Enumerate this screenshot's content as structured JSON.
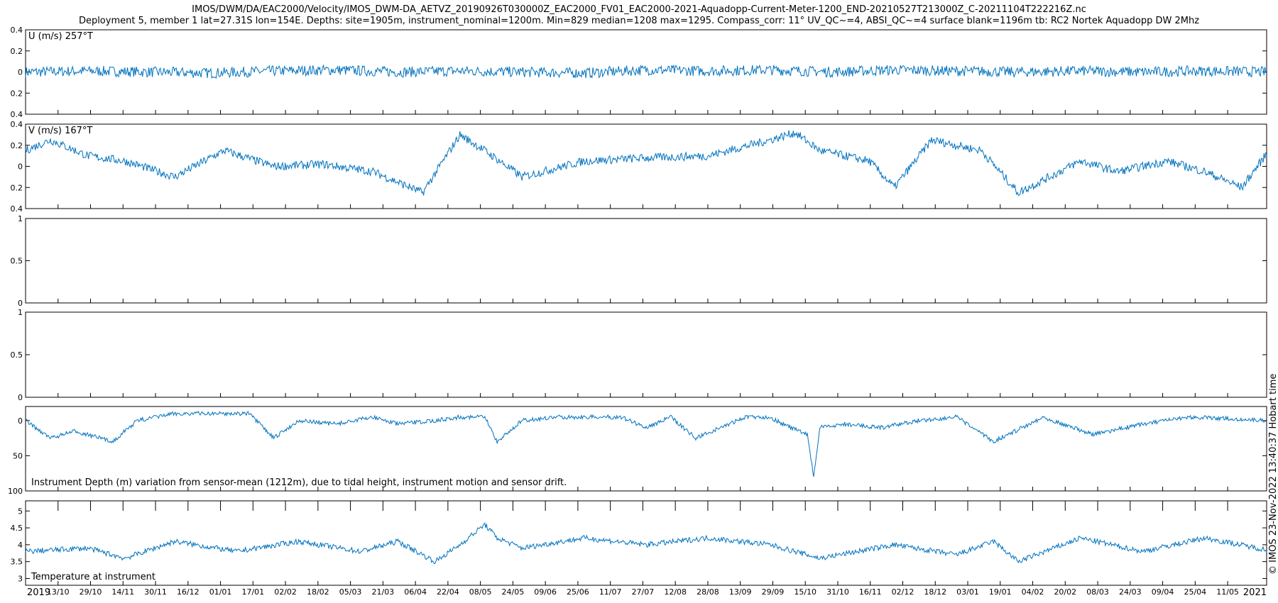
{
  "header": {
    "title_line1": "IMOS/DWM/DA/EAC2000/Velocity/IMOS_DWM-DA_AETVZ_20190926T030000Z_EAC2000_FV01_EAC2000-2021-Aquadopp-Current-Meter-1200_END-20210527T213000Z_C-20211104T222216Z.nc",
    "title_line2": "Deployment 5, member 1 lat=27.31S lon=154E. Depths: site=1905m, instrument_nominal=1200m. Min=829 median=1208 max=1295. Compass_corr: 11° UV_QC~=4, ABSI_QC~=4 surface blank=1196m tb: RC2 Nortek Aquadopp DW 2Mhz"
  },
  "side_note": "© IMOS 23-Nov-2022 13:40:37 Hobart time",
  "colors": {
    "series": "#0072BD",
    "axes": "#000000",
    "background": "#ffffff"
  },
  "chart_data": [
    {
      "type": "line",
      "panel": "u_velocity",
      "label": "U (m/s) 257°T",
      "ylim": [
        -0.4,
        0.4
      ],
      "yticks": [
        -0.4,
        -0.2,
        0,
        0.2,
        0.4
      ],
      "yticklabels": [
        "0.4",
        "0.2",
        "0",
        "0.2",
        "0.4"
      ],
      "ydir": "normal",
      "x": [
        0,
        0.05,
        0.1,
        0.15,
        0.2,
        0.25,
        0.3,
        0.35,
        0.4,
        0.45,
        0.5,
        0.55,
        0.6,
        0.65,
        0.7,
        0.75,
        0.8,
        0.85,
        0.9,
        0.95,
        1.0
      ],
      "values": [
        0.0,
        0.01,
        0.0,
        -0.01,
        0.01,
        0.02,
        0.0,
        0.01,
        0.0,
        -0.01,
        0.02,
        0.01,
        0.02,
        0.0,
        0.02,
        0.01,
        0.0,
        0.01,
        0.0,
        0.01,
        0.0
      ],
      "noise": 0.05
    },
    {
      "type": "line",
      "panel": "v_velocity",
      "label": "V (m/s) 167°T",
      "ylim": [
        -0.4,
        0.4
      ],
      "yticks": [
        -0.4,
        -0.2,
        0,
        0.2,
        0.4
      ],
      "yticklabels": [
        "0.4",
        "0.2",
        "0",
        "0.2",
        "0.4"
      ],
      "ydir": "normal",
      "x": [
        0,
        0.02,
        0.05,
        0.08,
        0.12,
        0.16,
        0.2,
        0.24,
        0.28,
        0.32,
        0.35,
        0.37,
        0.4,
        0.45,
        0.5,
        0.55,
        0.6,
        0.62,
        0.64,
        0.68,
        0.7,
        0.73,
        0.77,
        0.8,
        0.85,
        0.88,
        0.92,
        0.95,
        0.98,
        1.0
      ],
      "values": [
        0.15,
        0.25,
        0.1,
        0.05,
        -0.1,
        0.15,
        0.0,
        0.02,
        -0.05,
        -0.25,
        0.3,
        0.15,
        -0.1,
        0.05,
        0.08,
        0.1,
        0.25,
        0.32,
        0.15,
        0.05,
        -0.2,
        0.25,
        0.15,
        -0.25,
        0.05,
        -0.05,
        0.05,
        -0.05,
        -0.2,
        0.12
      ],
      "noise": 0.04
    },
    {
      "type": "line",
      "panel": "empty_1",
      "label": "",
      "ylim": [
        0,
        1
      ],
      "yticks": [
        0,
        0.5,
        1
      ],
      "yticklabels": [
        "0",
        "0.5",
        "1"
      ],
      "ydir": "normal",
      "x": [],
      "values": []
    },
    {
      "type": "line",
      "panel": "empty_2",
      "label": "",
      "ylim": [
        0,
        1
      ],
      "yticks": [
        0,
        0.5,
        1
      ],
      "yticklabels": [
        "0",
        "0.5",
        "1"
      ],
      "ydir": "normal",
      "x": [],
      "values": []
    },
    {
      "type": "line",
      "panel": "depth_variation",
      "label": "Instrument Depth (m) variation from sensor-mean (1212m), due to tidal height, instrument motion and sensor drift.",
      "ylim": [
        -20,
        100
      ],
      "yticks": [
        0,
        50,
        100
      ],
      "yticklabels": [
        "0",
        "50",
        "100"
      ],
      "ydir": "reverse",
      "x": [
        0,
        0.02,
        0.04,
        0.07,
        0.09,
        0.12,
        0.15,
        0.18,
        0.2,
        0.22,
        0.25,
        0.28,
        0.3,
        0.33,
        0.35,
        0.37,
        0.38,
        0.4,
        0.43,
        0.46,
        0.48,
        0.5,
        0.52,
        0.54,
        0.58,
        0.6,
        0.61,
        0.63,
        0.635,
        0.64,
        0.66,
        0.69,
        0.72,
        0.75,
        0.78,
        0.82,
        0.86,
        0.9,
        0.94,
        1.0
      ],
      "values": [
        0,
        25,
        15,
        30,
        0,
        -10,
        -10,
        -10,
        25,
        0,
        5,
        -5,
        5,
        0,
        -5,
        -5,
        30,
        0,
        -5,
        -5,
        -5,
        10,
        -5,
        25,
        -5,
        -5,
        5,
        20,
        80,
        10,
        5,
        10,
        0,
        -5,
        30,
        -5,
        20,
        5,
        -5,
        0
      ],
      "noise": 3
    },
    {
      "type": "line",
      "panel": "temperature",
      "label": "Temperature at instrument",
      "ylim": [
        2.8,
        5.3
      ],
      "yticks": [
        3,
        3.5,
        4,
        4.5,
        5
      ],
      "yticklabels": [
        "3",
        "3.5",
        "4",
        "4.5",
        "5"
      ],
      "ydir": "normal",
      "x": [
        0,
        0.05,
        0.08,
        0.12,
        0.17,
        0.22,
        0.27,
        0.3,
        0.33,
        0.35,
        0.37,
        0.38,
        0.4,
        0.45,
        0.5,
        0.55,
        0.6,
        0.64,
        0.7,
        0.75,
        0.78,
        0.8,
        0.85,
        0.9,
        0.95,
        1.0
      ],
      "values": [
        3.8,
        3.9,
        3.6,
        4.1,
        3.8,
        4.1,
        3.8,
        4.1,
        3.5,
        4.0,
        4.6,
        4.2,
        3.9,
        4.2,
        4.0,
        4.2,
        4.0,
        3.6,
        4.0,
        3.7,
        4.1,
        3.5,
        4.2,
        3.8,
        4.2,
        3.85
      ],
      "noise": 0.08
    }
  ],
  "x_axis": {
    "tick_labels": [
      "13/10",
      "29/10",
      "14/11",
      "30/11",
      "16/12",
      "01/01",
      "17/01",
      "02/02",
      "18/02",
      "05/03",
      "21/03",
      "06/04",
      "22/04",
      "08/05",
      "24/05",
      "09/06",
      "25/06",
      "11/07",
      "27/07",
      "12/08",
      "28/08",
      "13/09",
      "29/09",
      "15/10",
      "31/10",
      "16/11",
      "02/12",
      "18/12",
      "03/01",
      "19/01",
      "04/02",
      "20/02",
      "08/03",
      "24/03",
      "09/04",
      "25/04",
      "11/05"
    ],
    "year_start": "2019",
    "year_end": "2021"
  }
}
